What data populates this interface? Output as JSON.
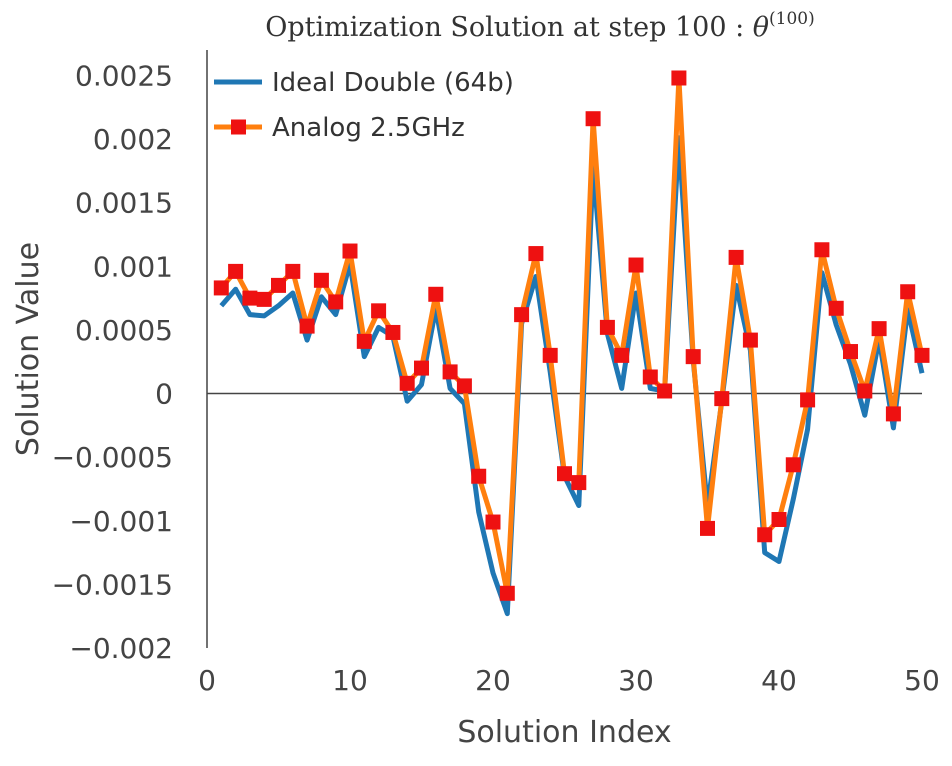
{
  "chart_data": {
    "type": "line",
    "title_prefix": "Optimization Solution at step 100 : ",
    "title_symbol": "θ",
    "title_superscript": "(100)",
    "xlabel": "Solution Index",
    "ylabel": "Solution Value",
    "xlim": [
      0,
      50
    ],
    "ylim": [
      -0.002,
      0.0027
    ],
    "x_ticks": [
      0,
      10,
      20,
      30,
      40,
      50
    ],
    "x_tick_labels": [
      "0",
      "10",
      "20",
      "30",
      "40",
      "50"
    ],
    "y_ticks": [
      -0.002,
      -0.0015,
      -0.001,
      -0.0005,
      0,
      0.0005,
      0.001,
      0.0015,
      0.002,
      0.0025
    ],
    "y_tick_labels": [
      "−0.002",
      "−0.0015",
      "−0.001",
      "−0.0005",
      "0",
      "0.0005",
      "0.001",
      "0.0015",
      "0.002",
      "0.0025"
    ],
    "legend_position": "top-left",
    "series": [
      {
        "name": "Ideal Double (64b)",
        "color": "#1f77b4",
        "marker": "none",
        "x": [
          1,
          2,
          3,
          4,
          5,
          6,
          7,
          8,
          9,
          10,
          11,
          12,
          13,
          14,
          15,
          16,
          17,
          18,
          19,
          20,
          21,
          22,
          23,
          24,
          25,
          26,
          27,
          28,
          29,
          30,
          31,
          32,
          33,
          34,
          35,
          36,
          37,
          38,
          39,
          40,
          41,
          42,
          43,
          44,
          45,
          46,
          47,
          48,
          49,
          50
        ],
        "values": [
          0.00069,
          0.00082,
          0.00062,
          0.00061,
          0.00069,
          0.00079,
          0.00042,
          0.00076,
          0.00062,
          0.00102,
          0.00029,
          0.00052,
          0.00045,
          -6e-05,
          7e-05,
          0.00067,
          4e-05,
          -8e-05,
          -0.00093,
          -0.00141,
          -0.00173,
          0.00055,
          0.00092,
          0.00017,
          -0.00065,
          -0.00088,
          0.00178,
          0.00047,
          4e-05,
          0.00079,
          4e-05,
          2e-05,
          0.00201,
          0.00026,
          -0.00089,
          -6e-05,
          0.00085,
          0.00034,
          -0.00125,
          -0.00132,
          -0.00083,
          -0.00028,
          0.00095,
          0.00054,
          0.00023,
          -0.00017,
          0.00043,
          -0.00027,
          0.00066,
          0.00016
        ]
      },
      {
        "name": "Analog 2.5GHz",
        "color": "#ff7f0e",
        "marker_color": "#ee1111",
        "marker": "square",
        "x": [
          1,
          2,
          3,
          4,
          5,
          6,
          7,
          8,
          9,
          10,
          11,
          12,
          13,
          14,
          15,
          16,
          17,
          18,
          19,
          20,
          21,
          22,
          23,
          24,
          25,
          26,
          27,
          28,
          29,
          30,
          31,
          32,
          33,
          34,
          35,
          36,
          37,
          38,
          39,
          40,
          41,
          42,
          43,
          44,
          45,
          46,
          47,
          48,
          49,
          50
        ],
        "values": [
          0.00083,
          0.00096,
          0.00075,
          0.00074,
          0.00085,
          0.00096,
          0.00053,
          0.00089,
          0.00072,
          0.00112,
          0.00041,
          0.00065,
          0.00048,
          8e-05,
          0.0002,
          0.00078,
          0.00017,
          6e-05,
          -0.00065,
          -0.00101,
          -0.00157,
          0.00062,
          0.0011,
          0.0003,
          -0.00063,
          -0.0007,
          0.00216,
          0.00052,
          0.0003,
          0.00101,
          0.00013,
          2e-05,
          0.00248,
          0.00029,
          -0.00106,
          -4e-05,
          0.00107,
          0.00042,
          -0.00111,
          -0.00099,
          -0.00056,
          -5e-05,
          0.00113,
          0.00067,
          0.00033,
          2e-05,
          0.00051,
          -0.00016,
          0.0008,
          0.0003
        ]
      }
    ]
  }
}
